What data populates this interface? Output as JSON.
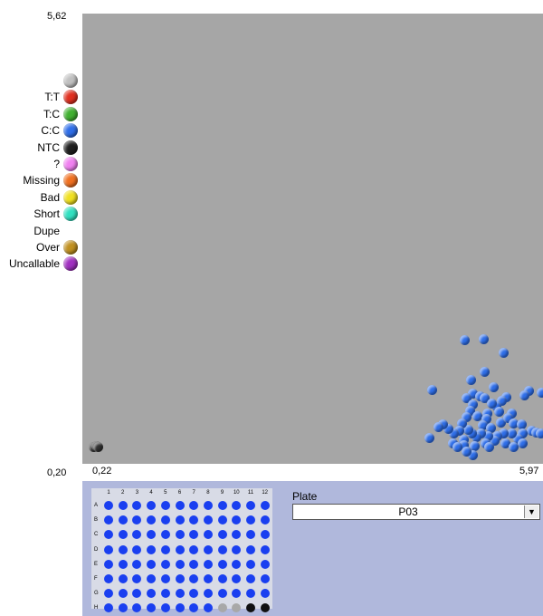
{
  "axes": {
    "y_max": "5,62",
    "y_min": "0,20",
    "x_min": "0,22",
    "x_max": "5,97"
  },
  "legend": [
    {
      "label": "",
      "color": "#c0c0c0"
    },
    {
      "label": "T:T",
      "color": "#e03020"
    },
    {
      "label": "T:C",
      "color": "#40b030"
    },
    {
      "label": "C:C",
      "color": "#2f6ee8"
    },
    {
      "label": "NTC",
      "color": "#202020"
    },
    {
      "label": "?",
      "color": "#f080f0"
    },
    {
      "label": "Missing",
      "color": "#f07020"
    },
    {
      "label": "Bad",
      "color": "#f0e020"
    },
    {
      "label": "Short",
      "color": "#30e0c0"
    },
    {
      "label": "Dupe",
      "color": null
    },
    {
      "label": "Over",
      "color": "#c09020"
    },
    {
      "label": "Uncallable",
      "color": "#a030c0"
    }
  ],
  "chart_data": {
    "type": "scatter",
    "xlim": [
      0.22,
      5.97
    ],
    "ylim": [
      0.2,
      5.62
    ],
    "series": [
      {
        "name": "NTC",
        "color": "#303030",
        "points": [
          [
            0.36,
            0.4
          ],
          [
            0.39,
            0.41
          ],
          [
            0.42,
            0.4
          ]
        ]
      },
      {
        "name": "C:C",
        "color": "#2f6ee8",
        "points": [
          [
            4.99,
            1.69
          ],
          [
            5.23,
            1.7
          ],
          [
            5.48,
            1.54
          ],
          [
            5.24,
            1.31
          ],
          [
            5.07,
            1.21
          ],
          [
            5.1,
            1.05
          ],
          [
            5.02,
            0.99
          ],
          [
            5.18,
            1.01
          ],
          [
            5.24,
            0.99
          ],
          [
            5.35,
            1.12
          ],
          [
            4.59,
            1.09
          ],
          [
            5.95,
            1.06
          ],
          [
            5.79,
            1.08
          ],
          [
            5.74,
            1.02
          ],
          [
            5.51,
            1.0
          ],
          [
            5.46,
            0.96
          ],
          [
            5.39,
            0.89
          ],
          [
            5.33,
            0.92
          ],
          [
            5.42,
            0.83
          ],
          [
            5.58,
            0.81
          ],
          [
            5.27,
            0.81
          ],
          [
            5.1,
            0.91
          ],
          [
            5.06,
            0.84
          ],
          [
            5.15,
            0.77
          ],
          [
            5.26,
            0.74
          ],
          [
            5.01,
            0.76
          ],
          [
            5.22,
            0.66
          ],
          [
            5.32,
            0.63
          ],
          [
            5.45,
            0.7
          ],
          [
            5.53,
            0.75
          ],
          [
            5.6,
            0.68
          ],
          [
            5.7,
            0.67
          ],
          [
            5.83,
            0.6
          ],
          [
            5.89,
            0.58
          ],
          [
            5.94,
            0.56
          ],
          [
            5.72,
            0.56
          ],
          [
            5.66,
            0.5
          ],
          [
            5.58,
            0.56
          ],
          [
            5.48,
            0.57
          ],
          [
            5.4,
            0.53
          ],
          [
            5.36,
            0.48
          ],
          [
            5.29,
            0.53
          ],
          [
            5.2,
            0.56
          ],
          [
            5.14,
            0.52
          ],
          [
            5.08,
            0.57
          ],
          [
            5.04,
            0.61
          ],
          [
            4.96,
            0.68
          ],
          [
            4.92,
            0.6
          ],
          [
            4.98,
            0.49
          ],
          [
            4.86,
            0.56
          ],
          [
            4.79,
            0.62
          ],
          [
            4.72,
            0.67
          ],
          [
            4.66,
            0.64
          ],
          [
            4.55,
            0.51
          ],
          [
            4.85,
            0.45
          ],
          [
            4.98,
            0.42
          ],
          [
            5.12,
            0.41
          ],
          [
            5.25,
            0.45
          ],
          [
            5.5,
            0.45
          ],
          [
            5.72,
            0.44
          ],
          [
            5.1,
            0.3
          ],
          [
            5.02,
            0.35
          ],
          [
            5.3,
            0.4
          ],
          [
            5.6,
            0.4
          ],
          [
            4.9,
            0.4
          ]
        ]
      }
    ]
  },
  "plate": {
    "label": "Plate",
    "selected": "P03",
    "columns": [
      "1",
      "2",
      "3",
      "4",
      "5",
      "6",
      "7",
      "8",
      "9",
      "10",
      "11",
      "12"
    ],
    "rows": [
      "A",
      "B",
      "C",
      "D",
      "E",
      "F",
      "G",
      "H"
    ],
    "well_color": "#1a3ff0",
    "special_wells": {
      "H9": "#a8a8a8",
      "H10": "#a8a8a8",
      "H11": "#101010",
      "H12": "#101010"
    }
  }
}
